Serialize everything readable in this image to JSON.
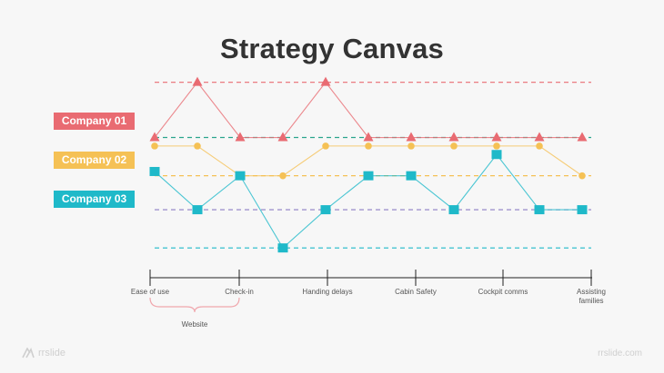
{
  "chart_data": {
    "type": "line",
    "title": "Strategy Canvas",
    "categories": [
      "Ease of use",
      "",
      "Check-in",
      "",
      "Handing delays",
      "",
      "Cabin Safety",
      "",
      "Cockpit comms",
      "",
      "Assisting families"
    ],
    "series": [
      {
        "name": "Company 01",
        "color": "#e96b72",
        "marker": "triangle",
        "values": [
          3.6,
          4.9,
          3.6,
          3.6,
          4.9,
          3.6,
          3.6,
          3.6,
          3.6,
          3.6,
          3.6
        ]
      },
      {
        "name": "Company 02",
        "color": "#f5c155",
        "marker": "circle",
        "values": [
          3.4,
          3.4,
          2.7,
          2.7,
          3.4,
          3.4,
          3.4,
          3.4,
          3.4,
          3.4,
          2.7
        ]
      },
      {
        "name": "Company 03",
        "color": "#1fb9c9",
        "marker": "square",
        "values": [
          2.8,
          1.9,
          2.7,
          1.0,
          1.9,
          2.7,
          2.7,
          1.9,
          3.2,
          1.9,
          1.9
        ]
      }
    ],
    "ylim": [
      0,
      5
    ],
    "group_bracket": {
      "label": "Website"
    }
  },
  "footer": {
    "brand_left": "rrslide",
    "brand_right": "rrslide.com"
  }
}
